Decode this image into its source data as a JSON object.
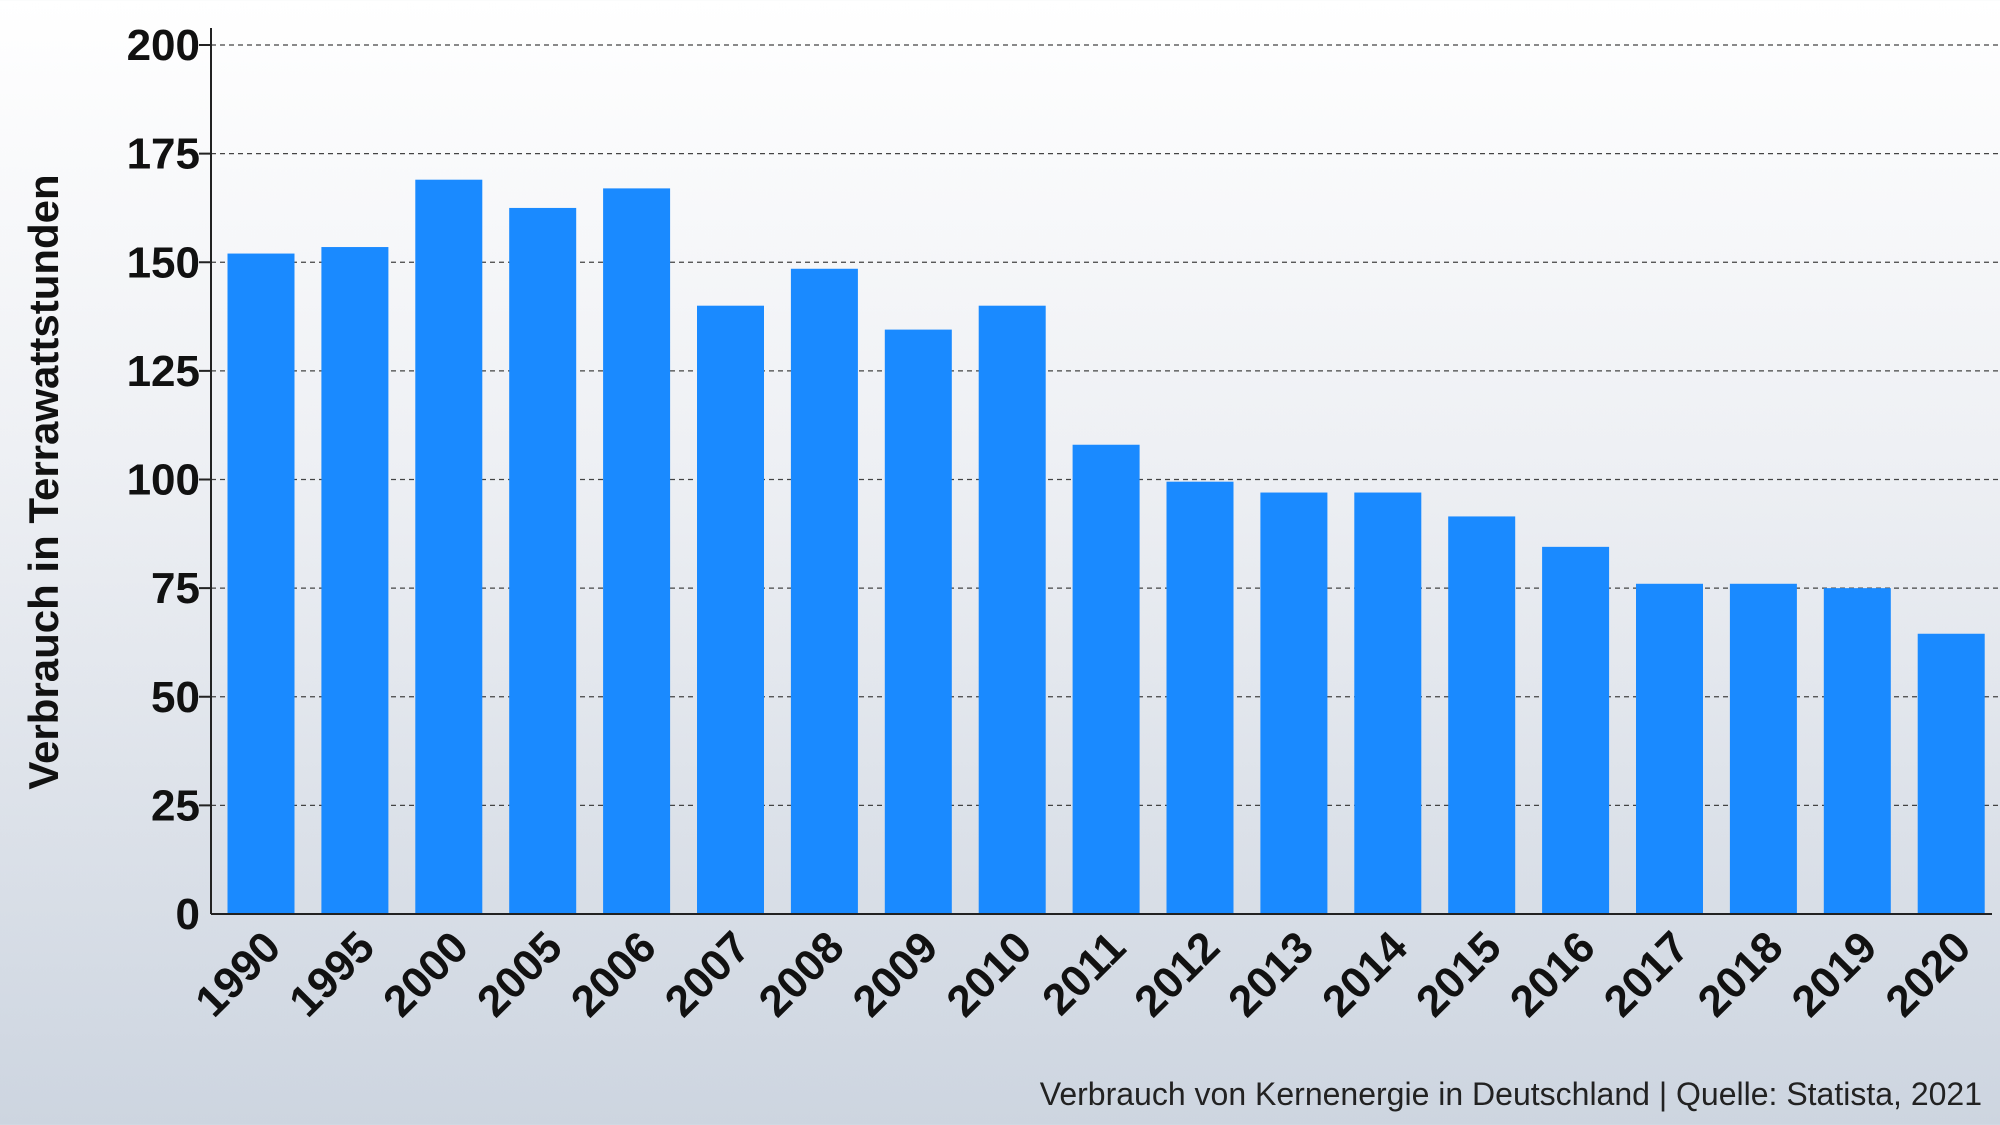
{
  "chart_data": {
    "type": "bar",
    "categories": [
      "1990",
      "1995",
      "2000",
      "2005",
      "2006",
      "2007",
      "2008",
      "2009",
      "2010",
      "2011",
      "2012",
      "2013",
      "2014",
      "2015",
      "2016",
      "2017",
      "2018",
      "2019",
      "2020"
    ],
    "values": [
      152,
      153.5,
      169,
      162.5,
      167,
      140,
      148.5,
      134.5,
      140,
      108,
      99.5,
      97,
      97,
      91.5,
      84.5,
      76,
      76,
      75,
      64.5
    ],
    "title": "",
    "xlabel": "",
    "ylabel": "Verbrauch in Terrawattstunden",
    "ylim": [
      0,
      200
    ],
    "yticks": [
      "0",
      "25",
      "50",
      "75",
      "100",
      "125",
      "150",
      "175",
      "200"
    ],
    "grid": "horizontal dashed",
    "bar_color": "#1a8aff",
    "caption": "Verbrauch von Kernenergie in Deutschland | Quelle: Statista, 2021"
  }
}
